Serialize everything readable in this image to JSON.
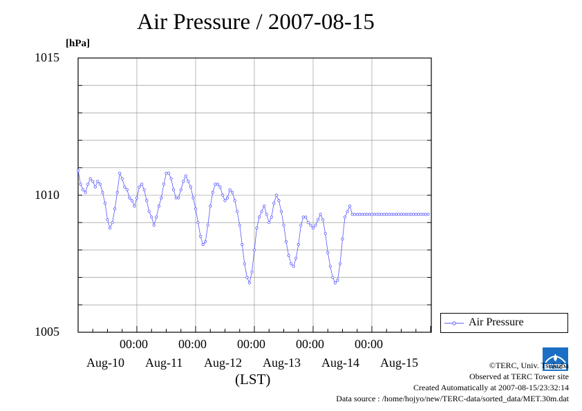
{
  "chart_data": {
    "type": "line",
    "title": "Air Pressure / 2007-08-15",
    "ylabel": "[hPa]",
    "xlabel": "(LST)",
    "ylim": [
      1005,
      1015
    ],
    "y_ticks": [
      "1005",
      "1010",
      "1015"
    ],
    "x_time_label": "00:00",
    "x_day_labels": [
      "Aug-10",
      "Aug-11",
      "Aug-12",
      "Aug-13",
      "Aug-14",
      "Aug-15"
    ],
    "grid": true,
    "legend_position": "right",
    "series": [
      {
        "name": "Air Pressure",
        "color": "#5555ff",
        "x_hours": [
          0,
          1,
          2,
          3,
          4,
          5,
          6,
          7,
          8,
          9,
          10,
          11,
          12,
          13,
          14,
          15,
          16,
          17,
          18,
          19,
          20,
          21,
          22,
          23,
          24,
          25,
          26,
          27,
          28,
          29,
          30,
          31,
          32,
          33,
          34,
          35,
          36,
          37,
          38,
          39,
          40,
          41,
          42,
          43,
          44,
          45,
          46,
          47,
          48,
          49,
          50,
          51,
          52,
          53,
          54,
          55,
          56,
          57,
          58,
          59,
          60,
          61,
          62,
          63,
          64,
          65,
          66,
          67,
          68,
          69,
          70,
          71,
          72,
          73,
          74,
          75,
          76,
          77,
          78,
          79,
          80,
          81,
          82,
          83,
          84,
          85,
          86,
          87,
          88,
          89,
          90,
          91,
          92,
          93,
          94,
          95,
          96,
          97,
          98,
          99,
          100,
          101,
          102,
          103,
          104,
          105,
          106,
          107,
          108,
          109,
          110,
          111,
          112,
          113,
          114,
          115,
          116,
          117,
          118,
          119,
          120,
          121,
          122,
          123,
          124,
          125,
          126,
          127,
          128,
          129,
          130,
          131,
          132,
          133,
          134,
          135,
          136,
          137,
          138,
          139,
          140,
          141,
          142,
          143,
          144
        ],
        "values": [
          1010.9,
          1010.4,
          1010.2,
          1010.1,
          1010.4,
          1010.6,
          1010.5,
          1010.3,
          1010.5,
          1010.4,
          1010.1,
          1009.7,
          1009.1,
          1008.8,
          1009.0,
          1009.5,
          1010.1,
          1010.8,
          1010.6,
          1010.3,
          1010.2,
          1009.9,
          1009.8,
          1009.6,
          1009.9,
          1010.3,
          1010.4,
          1010.2,
          1009.8,
          1009.4,
          1009.2,
          1008.9,
          1009.2,
          1009.6,
          1009.9,
          1010.4,
          1010.8,
          1010.8,
          1010.6,
          1010.2,
          1009.9,
          1009.9,
          1010.2,
          1010.5,
          1010.7,
          1010.5,
          1010.3,
          1009.9,
          1009.5,
          1009.0,
          1008.5,
          1008.2,
          1008.3,
          1008.9,
          1009.6,
          1010.1,
          1010.4,
          1010.4,
          1010.3,
          1010.0,
          1009.8,
          1009.9,
          1010.2,
          1010.1,
          1009.8,
          1009.4,
          1008.9,
          1008.2,
          1007.5,
          1007.0,
          1006.8,
          1007.2,
          1008.0,
          1008.8,
          1009.2,
          1009.4,
          1009.6,
          1009.3,
          1009.0,
          1009.2,
          1009.7,
          1010.0,
          1009.8,
          1009.4,
          1008.9,
          1008.3,
          1007.8,
          1007.5,
          1007.4,
          1007.7,
          1008.2,
          1008.9,
          1009.2,
          1009.2,
          1009.0,
          1008.9,
          1008.8,
          1008.9,
          1009.1,
          1009.3,
          1009.1,
          1008.6,
          1007.9,
          1007.4,
          1007.0,
          1006.8,
          1006.9,
          1007.5,
          1008.4,
          1009.2,
          1009.4,
          1009.6,
          1009.3,
          1009.3,
          1009.3,
          1009.3,
          1009.3,
          1009.3,
          1009.3,
          1009.3,
          1009.3,
          1009.3,
          1009.3,
          1009.3,
          1009.3,
          1009.3,
          1009.3,
          1009.3,
          1009.3,
          1009.3,
          1009.3,
          1009.3,
          1009.3,
          1009.3,
          1009.3,
          1009.3,
          1009.3,
          1009.3,
          1009.3,
          1009.3,
          1009.3,
          1009.3,
          1009.3,
          1009.3,
          1009.3
        ]
      }
    ]
  },
  "footer": {
    "line1": "©TERC, Univ. Tsukuba",
    "line2": "Observed at TERC Tower site",
    "line3": "Created Automatically at 2007-08-15/23:32:14",
    "line4": "Data source : /home/hojyo/new/TERC-data/sorted_data/MET.30m.dat"
  },
  "logo": {
    "text": "TERC",
    "color": "#1a6fc4"
  }
}
